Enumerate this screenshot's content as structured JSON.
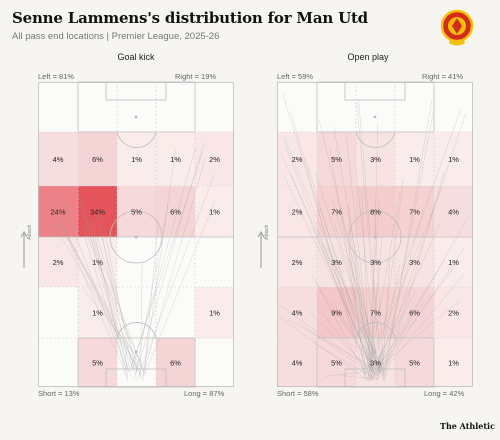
{
  "header": {
    "title": "Senne Lammens's distribution for Man Utd",
    "subtitle": "All pass end locations | Premier League, 2025-26"
  },
  "brand": "The Athletic",
  "colors": {
    "heat": "#e2363f",
    "background": "#f6f5f1",
    "lines": "#bdbdbd"
  },
  "chart_data": [
    {
      "type": "heatmap",
      "title": "Goal kick",
      "annotations": {
        "left": "Left = 81%",
        "right": "Right = 19%",
        "short": "Short = 13%",
        "long": "Long = 87%",
        "direction": "Attack"
      },
      "rows": [
        [
          "",
          "",
          "",
          "",
          ""
        ],
        [
          "4%",
          "6%",
          "1%",
          "1%",
          "2%"
        ],
        [
          "24%",
          "34%",
          "5%",
          "6%",
          "1%"
        ],
        [
          "2%",
          "1%",
          "",
          "",
          ""
        ],
        [
          "",
          "1%",
          "",
          "",
          "1%"
        ],
        [
          "",
          "5%",
          "",
          "6%",
          ""
        ]
      ],
      "values": [
        [
          0,
          0,
          0,
          0,
          0
        ],
        [
          4,
          6,
          1,
          1,
          2
        ],
        [
          24,
          34,
          5,
          6,
          1
        ],
        [
          2,
          1,
          0,
          0,
          0
        ],
        [
          0,
          1,
          0,
          0,
          1
        ],
        [
          0,
          5,
          0,
          6,
          0
        ]
      ]
    },
    {
      "type": "heatmap",
      "title": "Open play",
      "annotations": {
        "left": "Left = 59%",
        "right": "Right = 41%",
        "short": "Short = 58%",
        "long": "Long = 42%",
        "direction": "Attack"
      },
      "rows": [
        [
          "",
          "",
          "",
          "",
          ""
        ],
        [
          "2%",
          "5%",
          "3%",
          "1%",
          "1%"
        ],
        [
          "2%",
          "7%",
          "8%",
          "7%",
          "4%"
        ],
        [
          "2%",
          "3%",
          "3%",
          "3%",
          "1%"
        ],
        [
          "4%",
          "9%",
          "7%",
          "6%",
          "2%"
        ],
        [
          "4%",
          "5%",
          "3%",
          "5%",
          "1%"
        ]
      ],
      "values": [
        [
          0,
          0,
          0,
          0,
          0
        ],
        [
          2,
          5,
          3,
          1,
          1
        ],
        [
          2,
          7,
          8,
          7,
          4
        ],
        [
          2,
          3,
          3,
          3,
          1
        ],
        [
          4,
          9,
          7,
          6,
          2
        ],
        [
          4,
          5,
          3,
          5,
          1
        ]
      ]
    }
  ]
}
